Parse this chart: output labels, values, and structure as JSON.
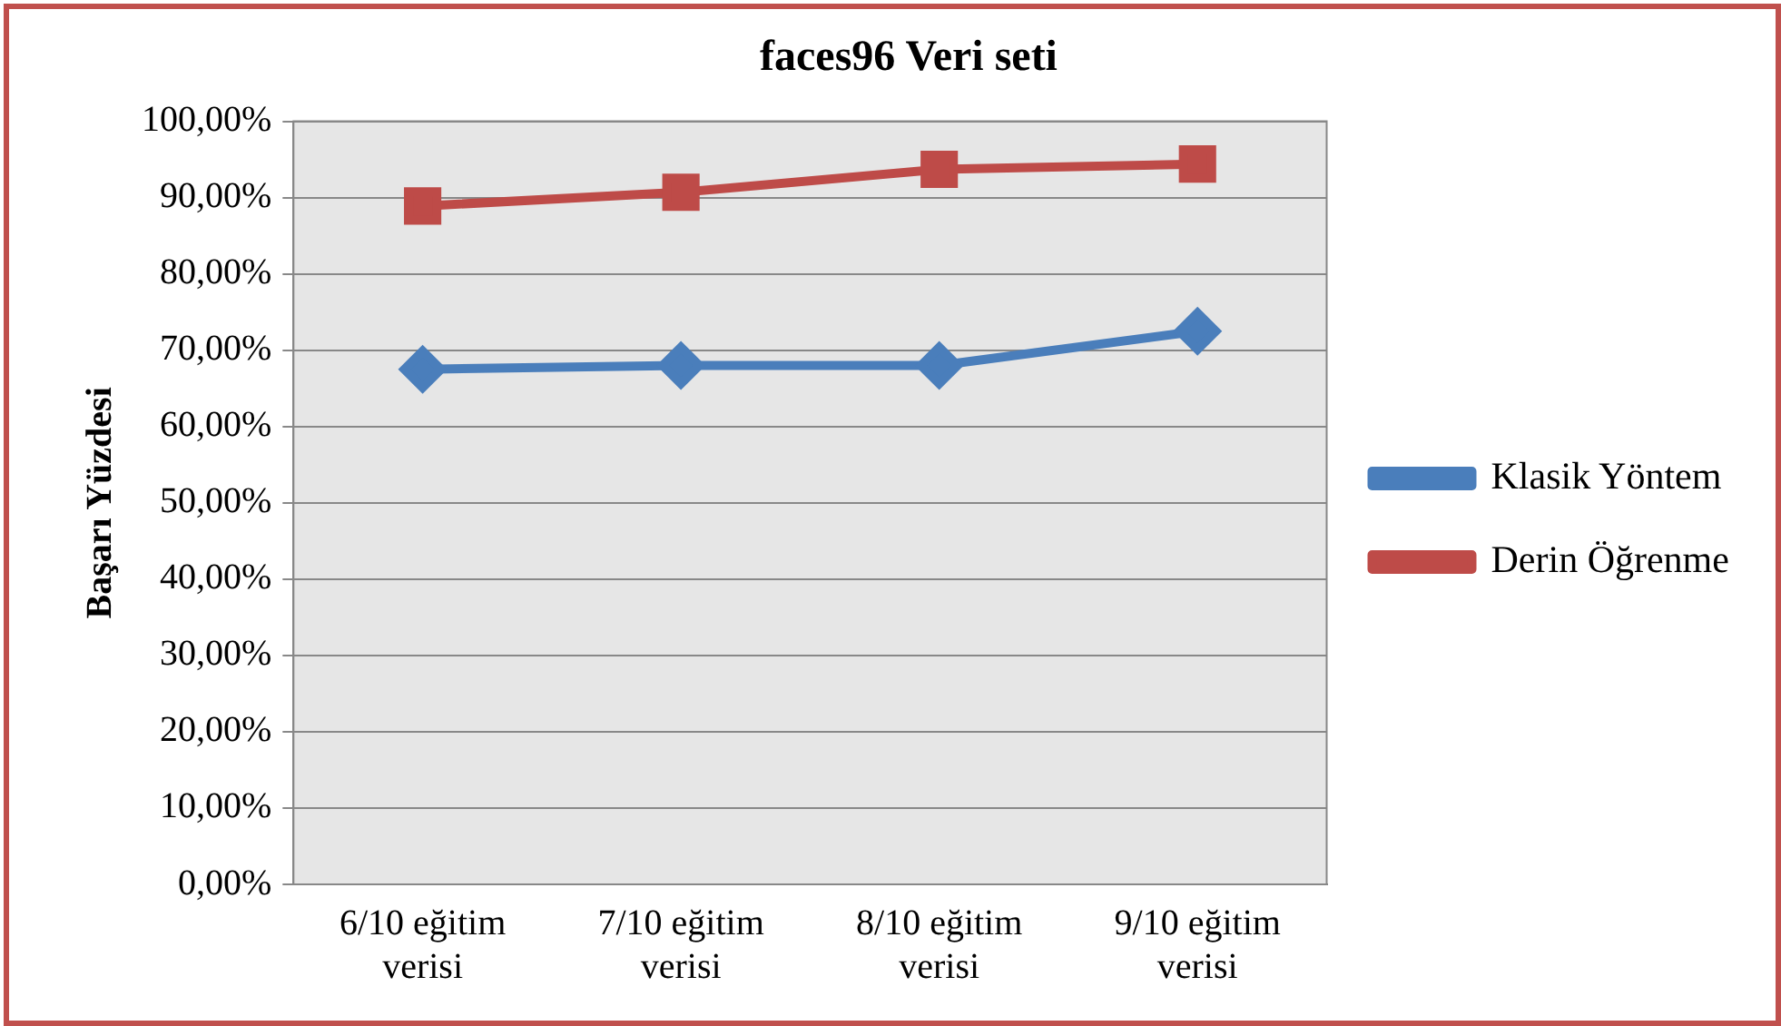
{
  "chart_data": {
    "type": "line",
    "title": "faces96 Veri seti",
    "ylabel": "Başarı Yüzdesi",
    "categories": [
      "6/10 eğitim verisi",
      "7/10 eğitim verisi",
      "8/10 eğitim verisi",
      "9/10 eğitim verisi"
    ],
    "series": [
      {
        "name": "Klasik Yöntem",
        "color": "#4a7ebb",
        "marker": "diamond",
        "values": [
          67.5,
          68.0,
          68.0,
          72.5
        ]
      },
      {
        "name": "Derin Öğrenme",
        "color": "#be4b48",
        "marker": "square",
        "values": [
          88.9,
          90.7,
          93.7,
          94.4
        ]
      }
    ],
    "ylim": [
      0,
      100
    ],
    "yticks": [
      {
        "value": 0,
        "label": "0,00%"
      },
      {
        "value": 10,
        "label": "10,00%"
      },
      {
        "value": 20,
        "label": "20,00%"
      },
      {
        "value": 30,
        "label": "30,00%"
      },
      {
        "value": 40,
        "label": "40,00%"
      },
      {
        "value": 50,
        "label": "50,00%"
      },
      {
        "value": 60,
        "label": "60,00%"
      },
      {
        "value": 70,
        "label": "70,00%"
      },
      {
        "value": 80,
        "label": "80,00%"
      },
      {
        "value": 90,
        "label": "90,00%"
      },
      {
        "value": 100,
        "label": "100,00%"
      }
    ],
    "grid": "y",
    "legend": "right"
  }
}
